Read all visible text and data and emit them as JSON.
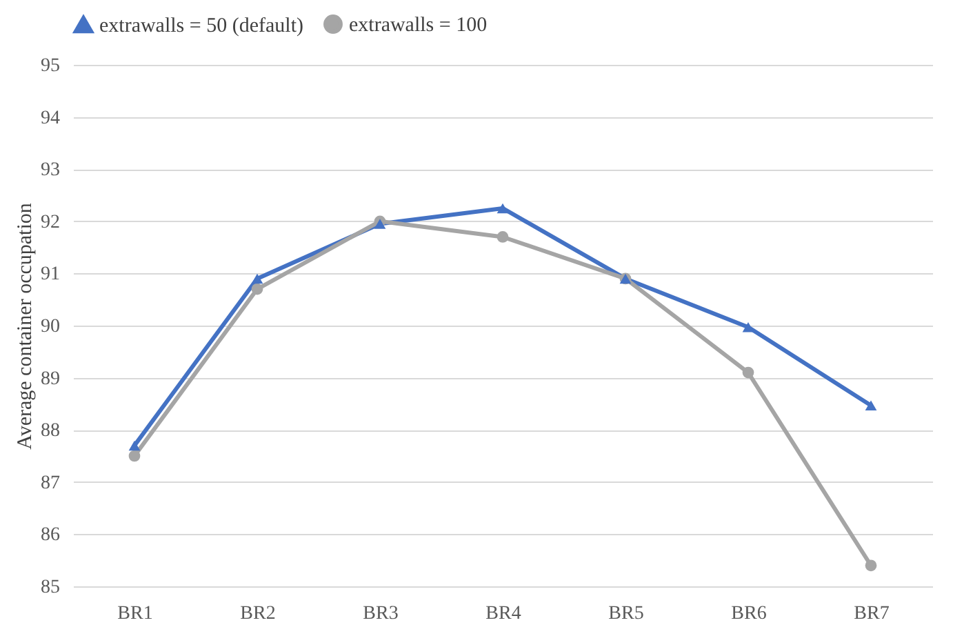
{
  "chart_data": {
    "type": "line",
    "ylabel": "Average container occupation",
    "categories": [
      "BR1",
      "BR2",
      "BR3",
      "BR4",
      "BR5",
      "BR6",
      "BR7"
    ],
    "series": [
      {
        "name": "extrawalls = 50 (default)",
        "color": "#4472c4",
        "marker": "triangle",
        "values": [
          87.7,
          90.9,
          91.95,
          92.25,
          90.9,
          89.97,
          88.47
        ]
      },
      {
        "name": "extrawalls = 100",
        "color": "#a5a5a5",
        "marker": "circle",
        "values": [
          87.5,
          90.7,
          92.0,
          91.7,
          90.9,
          89.1,
          85.4
        ]
      }
    ],
    "ylim": [
      85,
      95
    ],
    "yticks": [
      85,
      86,
      87,
      88,
      89,
      90,
      91,
      92,
      93,
      94,
      95
    ],
    "grid": "y",
    "legend": "top",
    "line_style": "solid"
  }
}
